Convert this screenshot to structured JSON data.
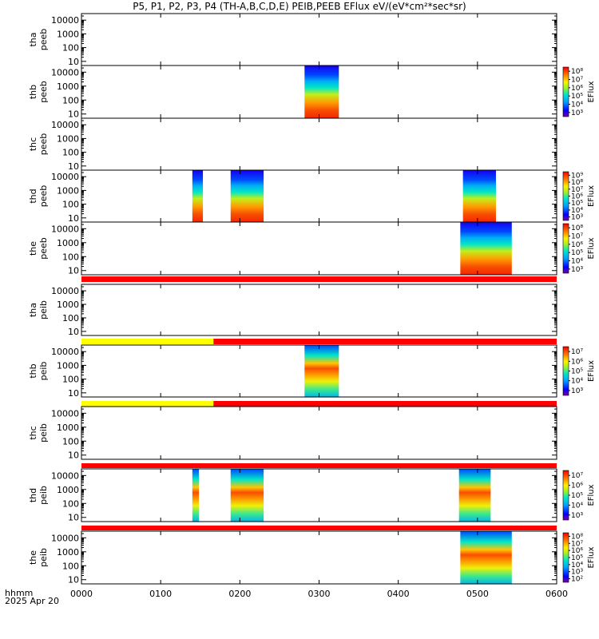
{
  "title": "P5, P1, P2, P3, P4 (TH-A,B,C,D,E) PEIB,PEEB EFlux eV/(eV*cm²*sec*sr)",
  "footer": {
    "line1": "hhmm",
    "line2": "2025 Apr 20"
  },
  "colors": {
    "flag_red": "#ff0000",
    "flag_yellow": "#ffff00"
  },
  "chart_data": {
    "type": "heatmap",
    "x_unit": "hhmm",
    "xlim": [
      "0000",
      "0600"
    ],
    "x_ticks": [
      "0000",
      "0100",
      "0200",
      "0300",
      "0400",
      "0500",
      "0600"
    ],
    "y_scale": "log",
    "y_ticks": [
      "10",
      "100",
      "1000",
      "10000"
    ],
    "ylim": [
      5,
      30000
    ],
    "colorbar_label": "EFlux",
    "panels": [
      {
        "label1": "tha",
        "label2": "peeb",
        "flag_after": null,
        "colorbar": null,
        "blocks": []
      },
      {
        "label1": "thb",
        "label2": "peeb",
        "flag_after": null,
        "colorbar": {
          "ticks": [
            "10³",
            "10⁴",
            "10⁵",
            "10⁶",
            "10⁷",
            "10⁸"
          ]
        },
        "blocks": [
          {
            "start": "0249",
            "end": "0315"
          }
        ]
      },
      {
        "label1": "thc",
        "label2": "peeb",
        "flag_after": null,
        "colorbar": null,
        "blocks": []
      },
      {
        "label1": "thd",
        "label2": "peeb",
        "flag_after": null,
        "colorbar": {
          "ticks": [
            "10³",
            "10⁴",
            "10⁵",
            "10⁶",
            "10⁷",
            "10⁸",
            "10⁹"
          ]
        },
        "blocks": [
          {
            "start": "0124",
            "end": "0132"
          },
          {
            "start": "0153",
            "end": "0218"
          },
          {
            "start": "0449",
            "end": "0514"
          }
        ]
      },
      {
        "label1": "the",
        "label2": "peeb",
        "flag_after": {
          "segments": [
            {
              "start": "0000",
              "end": "0600",
              "color": "red"
            }
          ]
        },
        "colorbar": {
          "ticks": [
            "10³",
            "10⁴",
            "10⁵",
            "10⁶",
            "10⁷",
            "10⁸"
          ]
        },
        "blocks": [
          {
            "start": "0447",
            "end": "0526"
          }
        ]
      },
      {
        "label1": "tha",
        "label2": "peib",
        "flag_after": {
          "segments": [
            {
              "start": "0000",
              "end": "0140",
              "color": "yellow"
            },
            {
              "start": "0140",
              "end": "0600",
              "color": "red"
            }
          ]
        },
        "colorbar": null,
        "blocks": []
      },
      {
        "label1": "thb",
        "label2": "peib",
        "flag_after": {
          "segments": [
            {
              "start": "0000",
              "end": "0140",
              "color": "yellow"
            },
            {
              "start": "0140",
              "end": "0600",
              "color": "red"
            }
          ]
        },
        "colorbar": {
          "ticks": [
            "10³",
            "10⁴",
            "10⁵",
            "10⁶",
            "10⁷"
          ]
        },
        "blocks": [
          {
            "start": "0249",
            "end": "0315"
          }
        ]
      },
      {
        "label1": "thc",
        "label2": "peib",
        "flag_after": {
          "segments": [
            {
              "start": "0000",
              "end": "0600",
              "color": "red"
            }
          ]
        },
        "colorbar": null,
        "blocks": []
      },
      {
        "label1": "thd",
        "label2": "peib",
        "flag_after": {
          "segments": [
            {
              "start": "0000",
              "end": "0600",
              "color": "red"
            }
          ]
        },
        "colorbar": {
          "ticks": [
            "10³",
            "10⁴",
            "10⁵",
            "10⁶",
            "10⁷"
          ]
        },
        "blocks": [
          {
            "start": "0124",
            "end": "0129"
          },
          {
            "start": "0153",
            "end": "0218"
          },
          {
            "start": "0446",
            "end": "0510"
          }
        ]
      },
      {
        "label1": "the",
        "label2": "peib",
        "flag_after": null,
        "colorbar": {
          "ticks": [
            "10²",
            "10³",
            "10⁴",
            "10⁵",
            "10⁶",
            "10⁷",
            "10⁸"
          ]
        },
        "blocks": [
          {
            "start": "0447",
            "end": "0526"
          }
        ]
      }
    ]
  }
}
